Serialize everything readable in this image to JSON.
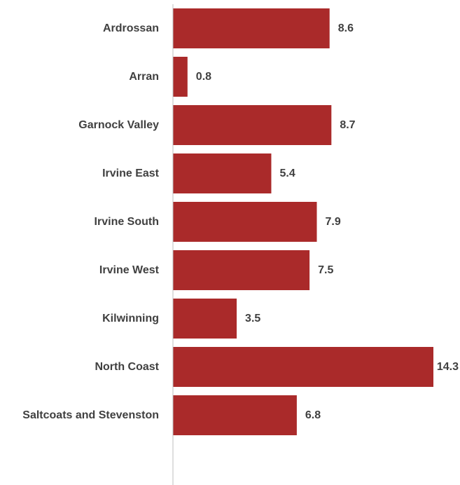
{
  "chart_data": {
    "type": "bar",
    "orientation": "horizontal",
    "categories": [
      "Ardrossan",
      "Arran",
      "Garnock Valley",
      "Irvine East",
      "Irvine South",
      "Irvine West",
      "Kilwinning",
      "North Coast",
      "Saltcoats and Stevenston"
    ],
    "values": [
      8.6,
      0.8,
      8.7,
      5.4,
      7.9,
      7.5,
      3.5,
      14.3,
      6.8
    ],
    "value_labels": [
      "8.6",
      "0.8",
      "8.7",
      "5.4",
      "7.9",
      "7.5",
      "3.5",
      "14.3",
      "6.8"
    ],
    "title": "",
    "xlabel": "",
    "ylabel": "",
    "xlim": [
      0,
      14.3
    ],
    "grid": false,
    "legend": "none",
    "bar_color": "#AA2A2A",
    "axis_color": "#BFBFBF",
    "label_color": "#404040"
  }
}
